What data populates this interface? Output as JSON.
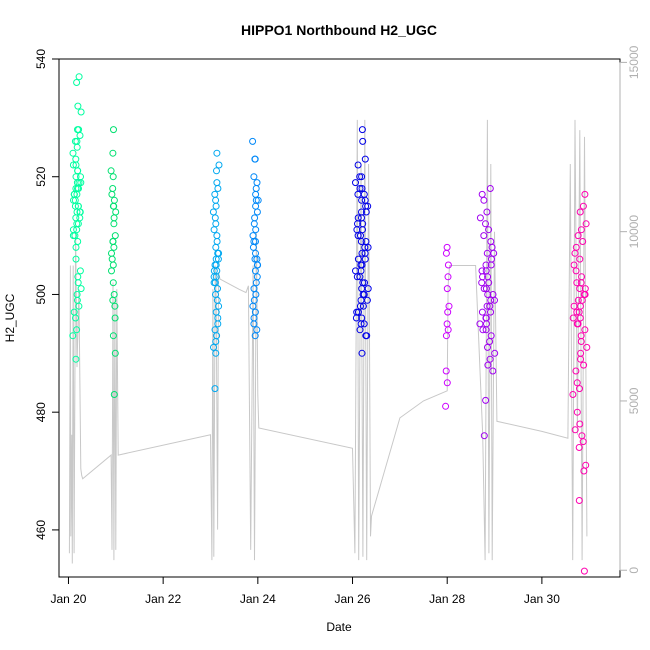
{
  "chart_data": {
    "type": "scatter",
    "title": "HIPPO1 Northbound H2_UGC",
    "xlabel": "Date",
    "ylabel": "H2_UGC",
    "y2label": "",
    "xlim": [
      19.8,
      31.65
    ],
    "ylim": [
      452,
      540
    ],
    "y2lim": [
      -200,
      15100
    ],
    "x_ticks": [
      {
        "value": 20,
        "label": "Jan 20"
      },
      {
        "value": 22,
        "label": "Jan 22"
      },
      {
        "value": 24,
        "label": "Jan 24"
      },
      {
        "value": 26,
        "label": "Jan 26"
      },
      {
        "value": 28,
        "label": "Jan 28"
      },
      {
        "value": 30,
        "label": "Jan 30"
      }
    ],
    "y_ticks": [
      460,
      480,
      500,
      520,
      540
    ],
    "y2_ticks": [
      0,
      5000,
      10000,
      15000
    ],
    "colors": {
      "altitude_line": "#c8c8c8",
      "axis": "#000000",
      "right_axis": "#b0b0b0",
      "flight_colors": [
        "#00ffa0",
        "#00e070",
        "#00a8f0",
        "#0088f8",
        "#0000e8",
        "#cc00ff",
        "#a000f0",
        "#ff00b0"
      ]
    },
    "series": [
      {
        "color": "#00ffa0",
        "x_center": 20.18,
        "x_spread": 0.09,
        "values": [
          537,
          536,
          532,
          531,
          528,
          528,
          527,
          526,
          526,
          525,
          524,
          523,
          522,
          522,
          521,
          521,
          520,
          520,
          519,
          519,
          519,
          518,
          518,
          518,
          517,
          517,
          517,
          516,
          516,
          515,
          515,
          515,
          514,
          514,
          514,
          513,
          513,
          512,
          512,
          511,
          511,
          510,
          510,
          509,
          508,
          506,
          504,
          503,
          502,
          501,
          500,
          499,
          498,
          497,
          496,
          494,
          493,
          489
        ]
      },
      {
        "color": "#00e070",
        "x_center": 20.95,
        "x_spread": 0.05,
        "values": [
          528,
          524,
          521,
          520,
          518,
          517,
          516,
          515,
          515,
          514,
          513,
          512,
          510,
          509,
          509,
          508,
          507,
          506,
          505,
          504,
          502,
          500,
          499,
          498,
          496,
          493,
          490,
          483
        ]
      },
      {
        "color": "#00a8f0",
        "x_center": 23.12,
        "x_spread": 0.06,
        "values": [
          524,
          522,
          521,
          519,
          518,
          517,
          516,
          515,
          514,
          513,
          512,
          511,
          510,
          509,
          508,
          507,
          507,
          506,
          506,
          505,
          505,
          504,
          504,
          503,
          503,
          502,
          502,
          501,
          500,
          499,
          498,
          497,
          496,
          495,
          494,
          493,
          492,
          491,
          490,
          484
        ]
      },
      {
        "color": "#0088f8",
        "x_center": 23.95,
        "x_spread": 0.06,
        "values": [
          526,
          523,
          523,
          520,
          519,
          518,
          517,
          516,
          516,
          515,
          514,
          513,
          512,
          511,
          510,
          509,
          509,
          508,
          507,
          506,
          506,
          505,
          505,
          504,
          503,
          502,
          501,
          500,
          499,
          498,
          497,
          496,
          495,
          494,
          493
        ]
      },
      {
        "color": "#0000e8",
        "x_center": 26.2,
        "x_spread": 0.14,
        "values": [
          528,
          526,
          523,
          522,
          520,
          520,
          519,
          518,
          518,
          517,
          517,
          516,
          516,
          515,
          515,
          514,
          514,
          513,
          513,
          512,
          512,
          511,
          511,
          510,
          510,
          509,
          509,
          508,
          508,
          507,
          507,
          506,
          506,
          505,
          505,
          504,
          504,
          503,
          503,
          502,
          502,
          501,
          501,
          500,
          500,
          499,
          499,
          498,
          498,
          497,
          497,
          496,
          496,
          495,
          495,
          494,
          493,
          493,
          490
        ]
      },
      {
        "color": "#cc00ff",
        "x_center": 28.0,
        "x_spread": 0.04,
        "values": [
          508,
          507,
          505,
          503,
          501,
          498,
          497,
          495,
          494,
          493,
          487,
          485,
          481
        ]
      },
      {
        "color": "#a000f0",
        "x_center": 28.85,
        "x_spread": 0.16,
        "values": [
          518,
          517,
          516,
          514,
          513,
          512,
          511,
          510,
          509,
          508,
          507,
          507,
          506,
          505,
          505,
          504,
          504,
          503,
          503,
          502,
          502,
          501,
          501,
          500,
          500,
          499,
          499,
          498,
          498,
          497,
          497,
          496,
          496,
          495,
          495,
          494,
          494,
          493,
          492,
          491,
          490,
          489,
          488,
          487,
          482,
          476
        ]
      },
      {
        "color": "#ff00b0",
        "x_center": 30.8,
        "x_spread": 0.15,
        "values": [
          517,
          515,
          514,
          512,
          511,
          510,
          509,
          508,
          507,
          506,
          505,
          504,
          503,
          502,
          502,
          501,
          501,
          500,
          500,
          499,
          499,
          498,
          498,
          497,
          497,
          496,
          496,
          495,
          495,
          494,
          493,
          492,
          491,
          490,
          489,
          488,
          487,
          485,
          484,
          483,
          480,
          478,
          477,
          476,
          475,
          474,
          471,
          470,
          465,
          453
        ]
      }
    ],
    "altitude_path": [
      [
        20.02,
        500
      ],
      [
        20.04,
        9000
      ],
      [
        20.05,
        1000
      ],
      [
        20.07,
        4000
      ],
      [
        20.08,
        200
      ],
      [
        20.1,
        9000
      ],
      [
        20.12,
        500
      ],
      [
        20.15,
        10000
      ],
      [
        20.18,
        6000
      ],
      [
        20.22,
        8300
      ],
      [
        20.26,
        3000
      ],
      [
        20.28,
        2800
      ],
      [
        20.3,
        2700
      ],
      [
        20.9,
        3400
      ],
      [
        20.92,
        600
      ],
      [
        20.94,
        8500
      ],
      [
        20.96,
        300
      ],
      [
        20.98,
        8000
      ],
      [
        21.0,
        600
      ],
      [
        21.02,
        8300
      ],
      [
        21.05,
        3400
      ],
      [
        23.0,
        4000
      ],
      [
        23.03,
        300
      ],
      [
        23.05,
        8300
      ],
      [
        23.07,
        400
      ],
      [
        23.1,
        9000
      ],
      [
        23.12,
        8000
      ],
      [
        23.15,
        1200
      ],
      [
        23.17,
        8800
      ],
      [
        23.2,
        8600
      ],
      [
        23.6,
        8300
      ],
      [
        23.75,
        8200
      ],
      [
        23.8,
        8400
      ],
      [
        23.85,
        600
      ],
      [
        23.9,
        9000
      ],
      [
        23.93,
        300
      ],
      [
        23.97,
        10000
      ],
      [
        24.0,
        5200
      ],
      [
        24.02,
        4200
      ],
      [
        26.0,
        3600
      ],
      [
        26.05,
        500
      ],
      [
        26.1,
        13300
      ],
      [
        26.13,
        300
      ],
      [
        26.18,
        12000
      ],
      [
        26.22,
        400
      ],
      [
        26.26,
        13300
      ],
      [
        26.3,
        300
      ],
      [
        26.34,
        12000
      ],
      [
        26.38,
        1000
      ],
      [
        26.4,
        1600
      ],
      [
        27.0,
        4500
      ],
      [
        27.5,
        5000
      ],
      [
        28.0,
        5300
      ],
      [
        28.02,
        8400
      ],
      [
        28.05,
        9000
      ],
      [
        28.6,
        9000
      ],
      [
        28.75,
        4000
      ],
      [
        28.8,
        300
      ],
      [
        28.85,
        13300
      ],
      [
        28.88,
        500
      ],
      [
        28.92,
        12000
      ],
      [
        28.95,
        300
      ],
      [
        29.0,
        10000
      ],
      [
        29.05,
        4400
      ],
      [
        30.0,
        4100
      ],
      [
        30.55,
        3900
      ],
      [
        30.6,
        12000
      ],
      [
        30.65,
        300
      ],
      [
        30.7,
        13300
      ],
      [
        30.75,
        4000
      ],
      [
        30.8,
        13000
      ],
      [
        30.85,
        300
      ],
      [
        30.9,
        12800
      ],
      [
        30.95,
        1000
      ]
    ]
  }
}
